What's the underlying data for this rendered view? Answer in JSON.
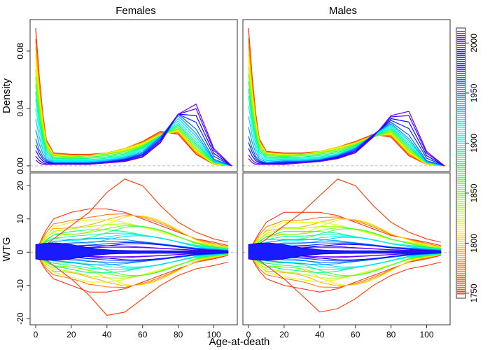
{
  "chart_data": {
    "type": "line",
    "xlabel": "Age-at-death",
    "x_ticks": [
      0,
      20,
      40,
      60,
      80,
      100
    ],
    "xlim": [
      0,
      110
    ],
    "columns": [
      "Females",
      "Males"
    ],
    "rows": [
      {
        "ylabel": "Density",
        "ylim": [
          -0.002,
          0.1
        ],
        "y_ticks": [
          0.0,
          0.04,
          0.08
        ],
        "y_tick_labels": [
          "0.00",
          "0.04",
          "0.08"
        ]
      },
      {
        "ylabel": "WTG",
        "ylim": [
          -21,
          23
        ],
        "y_ticks": [
          -20,
          -10,
          0,
          10,
          20
        ],
        "y_tick_labels": [
          "-20",
          "-10",
          "0",
          "10",
          "20"
        ]
      }
    ],
    "colorbar": {
      "range": [
        1745,
        2015
      ],
      "ticks": [
        1750,
        1800,
        1850,
        1900,
        1950,
        2000
      ],
      "colors": [
        "#ff0000",
        "#ff8000",
        "#ffff00",
        "#80ff00",
        "#00ff80",
        "#00ffff",
        "#0080ff",
        "#0000ff",
        "#8000ff"
      ]
    },
    "years": [
      1755,
      1775,
      1790,
      1805,
      1820,
      1835,
      1850,
      1865,
      1880,
      1895,
      1910,
      1925,
      1940,
      1955,
      1970,
      1985,
      2000,
      2010
    ],
    "panels": [
      {
        "name": "Females",
        "density_series": [
          {
            "year": 1755,
            "x": [
              0,
              3,
              6,
              10,
              20,
              30,
              40,
              50,
              60,
              70,
              80,
              90,
              100,
              110
            ],
            "y": [
              0.096,
              0.045,
              0.018,
              0.009,
              0.008,
              0.008,
              0.009,
              0.012,
              0.017,
              0.024,
              0.022,
              0.008,
              0.001,
              0.0
            ]
          },
          {
            "year": 1800,
            "x": [
              0,
              3,
              6,
              10,
              20,
              30,
              40,
              50,
              60,
              70,
              80,
              90,
              100,
              110
            ],
            "y": [
              0.079,
              0.038,
              0.016,
              0.008,
              0.007,
              0.007,
              0.009,
              0.012,
              0.016,
              0.022,
              0.024,
              0.01,
              0.001,
              0.0
            ]
          },
          {
            "year": 1850,
            "x": [
              0,
              3,
              6,
              10,
              20,
              30,
              40,
              50,
              60,
              70,
              80,
              90,
              100,
              110
            ],
            "y": [
              0.062,
              0.03,
              0.013,
              0.007,
              0.006,
              0.007,
              0.008,
              0.01,
              0.014,
              0.021,
              0.026,
              0.012,
              0.002,
              0.0
            ]
          },
          {
            "year": 1900,
            "x": [
              0,
              3,
              6,
              10,
              20,
              30,
              40,
              50,
              60,
              70,
              80,
              90,
              100,
              110
            ],
            "y": [
              0.045,
              0.02,
              0.008,
              0.004,
              0.004,
              0.004,
              0.005,
              0.007,
              0.012,
              0.021,
              0.03,
              0.017,
              0.003,
              0.0
            ]
          },
          {
            "year": 1950,
            "x": [
              0,
              3,
              6,
              10,
              20,
              30,
              40,
              50,
              60,
              70,
              80,
              90,
              100,
              110
            ],
            "y": [
              0.02,
              0.008,
              0.004,
              0.002,
              0.002,
              0.002,
              0.003,
              0.005,
              0.009,
              0.02,
              0.036,
              0.024,
              0.004,
              0.0
            ]
          },
          {
            "year": 2010,
            "x": [
              0,
              3,
              6,
              10,
              20,
              30,
              40,
              50,
              60,
              70,
              80,
              90,
              100,
              110
            ],
            "y": [
              0.004,
              0.001,
              0.001,
              0.001,
              0.001,
              0.001,
              0.002,
              0.003,
              0.006,
              0.016,
              0.036,
              0.043,
              0.012,
              0.0
            ]
          }
        ],
        "wtg_envelope": {
          "x": [
            0,
            5,
            10,
            20,
            30,
            40,
            50,
            60,
            70,
            80,
            90,
            100,
            108
          ],
          "upper": [
            0,
            6,
            10,
            12,
            13,
            13,
            12,
            10,
            8,
            6,
            4,
            3,
            2
          ],
          "lower": [
            0,
            -5,
            -8,
            -10,
            -12,
            -12,
            -11,
            -9,
            -7,
            -5,
            -3,
            -2,
            -1
          ]
        },
        "wtg_outlier": {
          "x": [
            0,
            10,
            20,
            30,
            40,
            50,
            60,
            70,
            80,
            90,
            100,
            108
          ],
          "upper": [
            0,
            4,
            8,
            12,
            18,
            22,
            20,
            14,
            9,
            6,
            4,
            3
          ],
          "lower": [
            0,
            -4,
            -8,
            -13,
            -19,
            -18,
            -14,
            -10,
            -7,
            -5,
            -4,
            -3
          ]
        }
      },
      {
        "name": "Males",
        "density_series": [
          {
            "year": 1755,
            "x": [
              0,
              3,
              6,
              10,
              20,
              30,
              40,
              50,
              60,
              70,
              80,
              90,
              100,
              110
            ],
            "y": [
              0.096,
              0.046,
              0.019,
              0.01,
              0.009,
              0.009,
              0.01,
              0.013,
              0.017,
              0.022,
              0.02,
              0.007,
              0.001,
              0.0
            ]
          },
          {
            "year": 1800,
            "x": [
              0,
              3,
              6,
              10,
              20,
              30,
              40,
              50,
              60,
              70,
              80,
              90,
              100,
              110
            ],
            "y": [
              0.08,
              0.039,
              0.017,
              0.009,
              0.008,
              0.008,
              0.01,
              0.013,
              0.016,
              0.021,
              0.022,
              0.009,
              0.001,
              0.0
            ]
          },
          {
            "year": 1850,
            "x": [
              0,
              3,
              6,
              10,
              20,
              30,
              40,
              50,
              60,
              70,
              80,
              90,
              100,
              110
            ],
            "y": [
              0.064,
              0.031,
              0.014,
              0.008,
              0.007,
              0.008,
              0.009,
              0.011,
              0.015,
              0.02,
              0.024,
              0.011,
              0.002,
              0.0
            ]
          },
          {
            "year": 1900,
            "x": [
              0,
              3,
              6,
              10,
              20,
              30,
              40,
              50,
              60,
              70,
              80,
              90,
              100,
              110
            ],
            "y": [
              0.047,
              0.021,
              0.009,
              0.005,
              0.005,
              0.005,
              0.006,
              0.008,
              0.013,
              0.021,
              0.027,
              0.015,
              0.002,
              0.0
            ]
          },
          {
            "year": 1950,
            "x": [
              0,
              3,
              6,
              10,
              20,
              30,
              40,
              50,
              60,
              70,
              80,
              90,
              100,
              110
            ],
            "y": [
              0.022,
              0.009,
              0.004,
              0.002,
              0.003,
              0.003,
              0.004,
              0.007,
              0.012,
              0.022,
              0.03,
              0.02,
              0.003,
              0.0
            ]
          },
          {
            "year": 2010,
            "x": [
              0,
              3,
              6,
              10,
              20,
              30,
              40,
              50,
              60,
              70,
              80,
              90,
              100,
              110
            ],
            "y": [
              0.005,
              0.001,
              0.001,
              0.001,
              0.001,
              0.002,
              0.003,
              0.005,
              0.009,
              0.02,
              0.035,
              0.038,
              0.01,
              0.0
            ]
          }
        ],
        "wtg_envelope": {
          "x": [
            0,
            5,
            10,
            20,
            30,
            40,
            50,
            60,
            70,
            80,
            90,
            100,
            108
          ],
          "upper": [
            0,
            5,
            9,
            12,
            12,
            12,
            11,
            9,
            7,
            5,
            4,
            3,
            2
          ],
          "lower": [
            0,
            -5,
            -8,
            -10,
            -11,
            -12,
            -11,
            -9,
            -7,
            -5,
            -3,
            -2,
            -1
          ]
        },
        "wtg_outlier": {
          "x": [
            0,
            10,
            20,
            30,
            40,
            50,
            60,
            70,
            80,
            90,
            100,
            108
          ],
          "upper": [
            0,
            4,
            8,
            12,
            17,
            22,
            20,
            14,
            9,
            6,
            4,
            3
          ],
          "lower": [
            0,
            -4,
            -8,
            -13,
            -18,
            -17,
            -14,
            -10,
            -7,
            -5,
            -4,
            -3
          ]
        }
      }
    ]
  }
}
